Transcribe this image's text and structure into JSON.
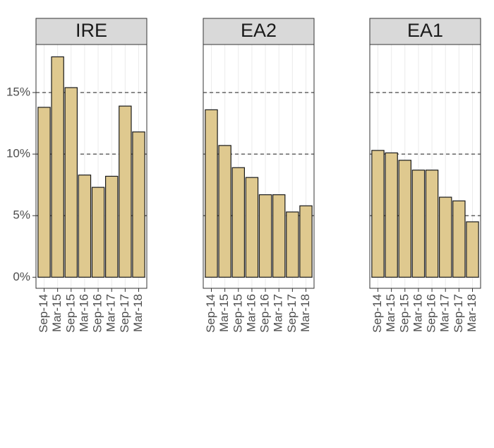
{
  "chart_data": {
    "type": "bar",
    "categories": [
      "Sep-14",
      "Mar-15",
      "Sep-15",
      "Mar-16",
      "Sep-16",
      "Mar-17",
      "Sep-17",
      "Mar-18"
    ],
    "facets": [
      {
        "title": "IRE",
        "values": [
          13.8,
          17.9,
          15.4,
          8.3,
          7.3,
          8.2,
          13.9,
          11.8
        ]
      },
      {
        "title": "EA2",
        "values": [
          13.6,
          10.7,
          8.9,
          8.1,
          6.7,
          6.7,
          5.3,
          5.8
        ]
      },
      {
        "title": "EA1",
        "values": [
          10.3,
          10.1,
          9.5,
          8.7,
          8.7,
          6.5,
          6.2,
          4.5
        ]
      }
    ],
    "color": "#dfc98f",
    "ylim": [
      -0.9,
      18.9
    ],
    "yticks": [
      {
        "value": 0,
        "label": "0%"
      },
      {
        "value": 5,
        "label": "5%"
      },
      {
        "value": 10,
        "label": "10%"
      },
      {
        "value": 15,
        "label": "15%"
      }
    ],
    "reference_lines": [
      5,
      10,
      15
    ],
    "grid": true
  }
}
